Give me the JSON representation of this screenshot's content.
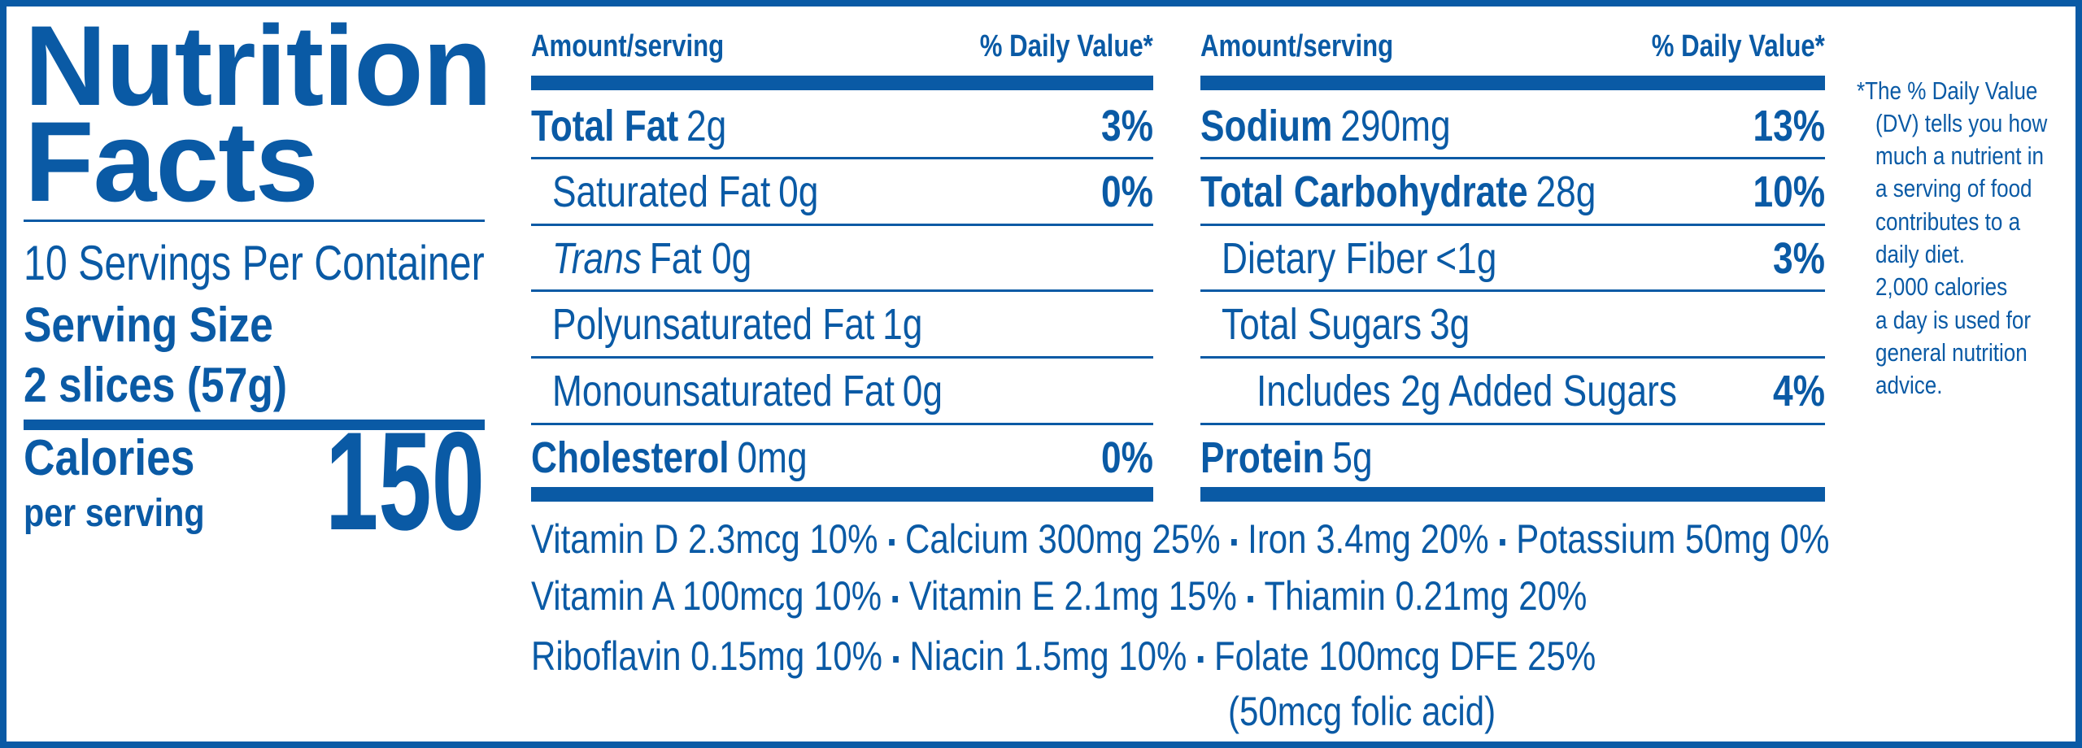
{
  "left": {
    "title": "Nutrition Facts",
    "servings": "10 Servings Per Container",
    "serving_size_label": "Serving Size",
    "serving_size": "2 slices (57g)",
    "calories_label": "Calories",
    "calories_sub": "per serving",
    "calories": 150
  },
  "columns": [
    {
      "header_amount": "Amount/serving",
      "header_dv": "% Daily Value*",
      "rows": [
        {
          "label": "Total Fat",
          "amount": "2g",
          "dv": "3%",
          "bold": true
        },
        {
          "label": "Saturated Fat",
          "amount": "0g",
          "dv": "0%",
          "indent": 1
        },
        {
          "label": "Trans",
          "amount": "Fat 0g",
          "italic": true,
          "indent": 1
        },
        {
          "label": "Polyunsaturated Fat",
          "amount": "1g",
          "indent": 1
        },
        {
          "label": "Monounsaturated Fat",
          "amount": "0g",
          "indent": 1
        },
        {
          "label": "Cholesterol",
          "amount": "0mg",
          "dv": "0%",
          "bold": true
        }
      ]
    },
    {
      "header_amount": "Amount/serving",
      "header_dv": "% Daily Value*",
      "rows": [
        {
          "label": "Sodium",
          "amount": "290mg",
          "dv": "13%",
          "bold": true
        },
        {
          "label": "Total Carbohydrate",
          "amount": "28g",
          "dv": "10%",
          "bold": true
        },
        {
          "label": "Dietary Fiber",
          "amount": "<1g",
          "dv": "3%",
          "indent": 1
        },
        {
          "label": "Total Sugars",
          "amount": "3g",
          "indent": 1
        },
        {
          "label": "Includes 2g Added Sugars",
          "dv": "4%",
          "indent": 2
        },
        {
          "label": "Protein",
          "amount": "5g",
          "bold": true
        }
      ]
    }
  ],
  "vitamins": {
    "lines": [
      [
        "Vitamin D 2.3mcg 10%",
        "Calcium 300mg 25%",
        "Iron 3.4mg 20%",
        "Potassium 50mg 0%"
      ],
      [
        "Vitamin A 100mcg 10%",
        "Vitamin E 2.1mg 15%",
        "Thiamin 0.21mg 20%"
      ],
      [
        "Riboflavin 0.15mg 10%",
        "Niacin 1.5mg 10%",
        "Folate 100mcg DFE 25%"
      ]
    ],
    "note": "(50mcg folic acid)"
  },
  "footnote": {
    "lines": [
      "*The % Daily Value",
      "(DV) tells you how",
      "much a nutrient in",
      "a serving of food",
      "contributes to a",
      "daily diet.",
      "2,000 calories",
      "a day is used for",
      "general nutrition",
      "advice."
    ]
  }
}
